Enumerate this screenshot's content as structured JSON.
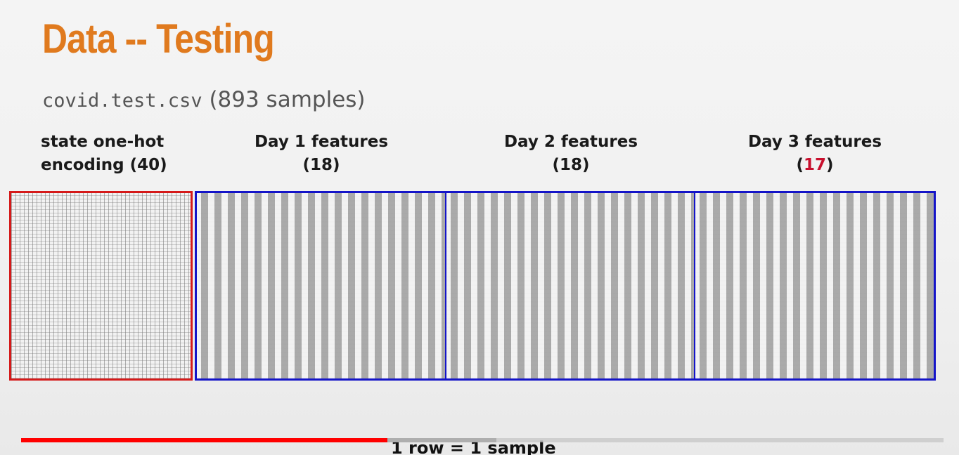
{
  "slide": {
    "title": "Data -- Testing",
    "subtitle_file": "covid.test.csv",
    "subtitle_count": "(893 samples)",
    "columns": [
      {
        "line1": "state one-hot",
        "line2": "encoding (40)"
      },
      {
        "line1": "Day 1 features",
        "line2": "(18)"
      },
      {
        "line1": "Day 2 features",
        "line2": "(18)"
      },
      {
        "line1": "Day 3 features",
        "line2_open": "(",
        "line2_num": "17",
        "line2_close": ")"
      }
    ],
    "caption": "1 row = 1 sample"
  },
  "player": {
    "progress_fraction": 0.397,
    "buffered_fraction": 0.515
  },
  "colors": {
    "title": "#e07a1e",
    "onehot_border": "#d51a1a",
    "features_border": "#1414c8",
    "highlight_number": "#c8102e",
    "progress": "#ff0000"
  }
}
